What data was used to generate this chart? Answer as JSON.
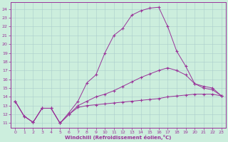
{
  "xlabel": "Windchill (Refroidissement éolien,°C)",
  "bg_color": "#cceedd",
  "line_color": "#993399",
  "xlim": [
    -0.5,
    23.5
  ],
  "ylim": [
    10.5,
    24.8
  ],
  "yticks": [
    11,
    12,
    13,
    14,
    15,
    16,
    17,
    18,
    19,
    20,
    21,
    22,
    23,
    24
  ],
  "xticks": [
    0,
    1,
    2,
    3,
    4,
    5,
    6,
    7,
    8,
    9,
    10,
    11,
    12,
    13,
    14,
    15,
    16,
    17,
    18,
    19,
    20,
    21,
    22,
    23
  ],
  "series": [
    {
      "x": [
        0,
        1,
        2,
        3,
        4,
        5,
        6,
        7,
        8,
        9,
        10,
        11,
        12,
        13,
        14,
        15,
        16,
        17,
        18,
        19,
        20,
        21,
        22,
        23
      ],
      "y": [
        13.5,
        11.8,
        11.1,
        12.7,
        12.7,
        11.0,
        12.0,
        12.8,
        13.0,
        13.1,
        13.2,
        13.3,
        13.4,
        13.5,
        13.6,
        13.7,
        13.8,
        14.0,
        14.1,
        14.2,
        14.3,
        14.3,
        14.3,
        14.1
      ]
    },
    {
      "x": [
        0,
        1,
        2,
        3,
        4,
        5,
        6,
        7,
        8,
        9,
        10,
        11,
        12,
        13,
        14,
        15,
        16,
        17,
        18,
        19,
        20,
        21,
        22,
        23
      ],
      "y": [
        13.5,
        11.8,
        11.1,
        12.7,
        12.7,
        11.0,
        12.0,
        13.0,
        13.5,
        14.0,
        14.3,
        14.7,
        15.2,
        15.7,
        16.2,
        16.6,
        17.0,
        17.3,
        17.0,
        16.5,
        15.5,
        15.2,
        15.0,
        14.1
      ]
    },
    {
      "x": [
        0,
        1,
        2,
        3,
        4,
        5,
        6,
        7,
        8,
        9,
        10,
        11,
        12,
        13,
        14,
        15,
        16,
        17,
        18,
        19,
        20,
        21,
        22,
        23
      ],
      "y": [
        13.5,
        11.8,
        11.1,
        12.7,
        12.7,
        11.0,
        12.2,
        13.5,
        15.6,
        16.5,
        19.0,
        21.0,
        21.8,
        23.3,
        23.8,
        24.1,
        24.2,
        22.0,
        19.2,
        17.5,
        15.5,
        15.0,
        14.8,
        14.1
      ]
    }
  ]
}
